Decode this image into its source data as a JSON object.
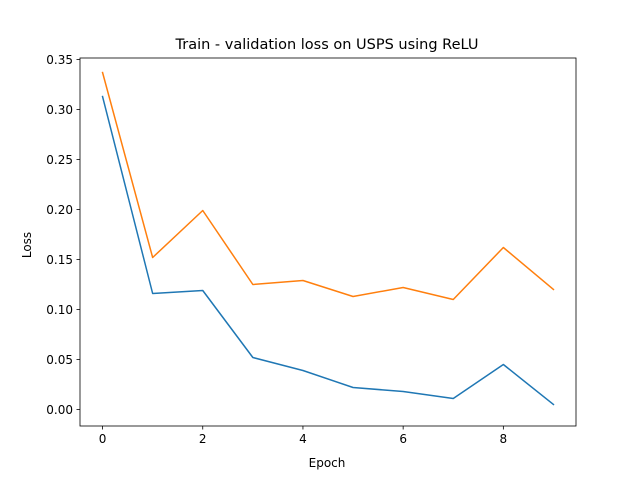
{
  "chart_data": {
    "type": "line",
    "title": "Train - validation loss on USPS using ReLU",
    "xlabel": "Epoch",
    "ylabel": "Loss",
    "x": [
      0,
      1,
      2,
      3,
      4,
      5,
      6,
      7,
      8,
      9
    ],
    "xlim": [
      -0.45,
      9.45
    ],
    "ylim": [
      -0.0165,
      0.3515
    ],
    "xticks": [
      0,
      2,
      4,
      6,
      8
    ],
    "yticks": [
      0.0,
      0.05,
      0.1,
      0.15,
      0.2,
      0.25,
      0.3,
      0.35
    ],
    "xtick_labels": [
      "0",
      "2",
      "4",
      "6",
      "8"
    ],
    "ytick_labels": [
      "0.00",
      "0.05",
      "0.10",
      "0.15",
      "0.20",
      "0.25",
      "0.30",
      "0.35"
    ],
    "grid": false,
    "legend": false,
    "series": [
      {
        "color": "#1f77b4",
        "values": [
          0.313,
          0.116,
          0.119,
          0.052,
          0.039,
          0.022,
          0.018,
          0.011,
          0.045,
          0.005
        ]
      },
      {
        "color": "#ff7f0e",
        "values": [
          0.337,
          0.152,
          0.199,
          0.125,
          0.129,
          0.113,
          0.122,
          0.11,
          0.162,
          0.12
        ]
      }
    ]
  }
}
